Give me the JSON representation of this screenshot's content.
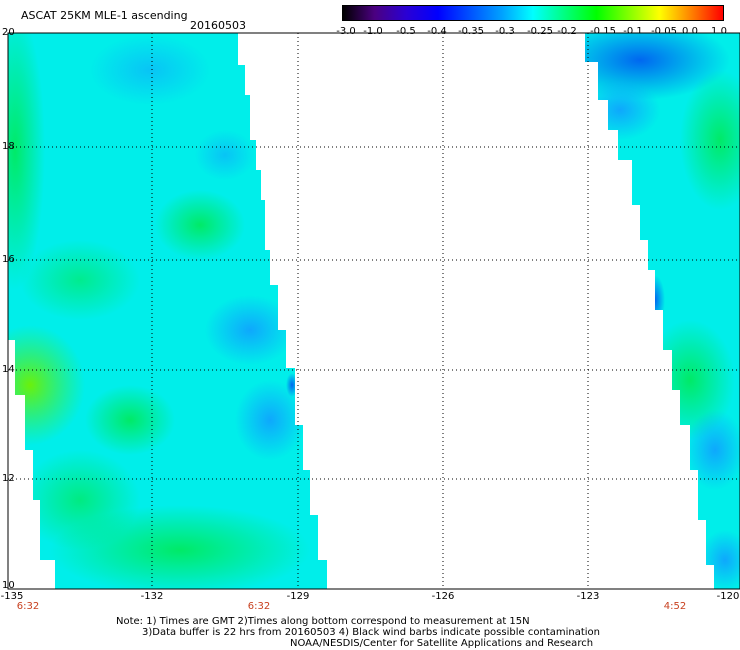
{
  "title": "ASCAT 25KM MLE-1 ascending",
  "date": "20160503",
  "colorbar": {
    "ticks": [
      "-3.0",
      "-1.0",
      "-0.5",
      "-0.4",
      "-0.35",
      "-0.3",
      "-0.25",
      "-0.2",
      "-0.15",
      "-0.1",
      "-0.05",
      "0.0",
      "1.0"
    ],
    "colors": [
      "#000000",
      "#4b0080",
      "#2a00d5",
      "#0000ff",
      "#0050ff",
      "#00a0ff",
      "#00ffff",
      "#00ff80",
      "#00ff00",
      "#80ff00",
      "#ffff00",
      "#ff8000",
      "#ff0000"
    ]
  },
  "axes": {
    "x_ticks": [
      "-135",
      "-132",
      "-129",
      "-126",
      "-123",
      "-120"
    ],
    "y_ticks": [
      "20",
      "18",
      "16",
      "14",
      "12",
      "10"
    ],
    "lon_range": [
      -135,
      -120
    ],
    "lat_range": [
      10,
      20
    ]
  },
  "swath_times": [
    "6:32",
    "6:32",
    "4:52"
  ],
  "notes": [
    "Note: 1) Times are GMT 2)Times along bottom correspond to measurement at 15N",
    "3)Data buffer is 22 hrs from 20160503 4) Black wind barbs indicate possible contamination",
    "NOAA/NESDIS/Center for Satellite Applications and Research"
  ],
  "colors": {
    "swath_base": "#00f0f0",
    "swath_green": "#00ee70",
    "swath_blue": "#1aa8ff",
    "time_text": "#c8401f"
  }
}
